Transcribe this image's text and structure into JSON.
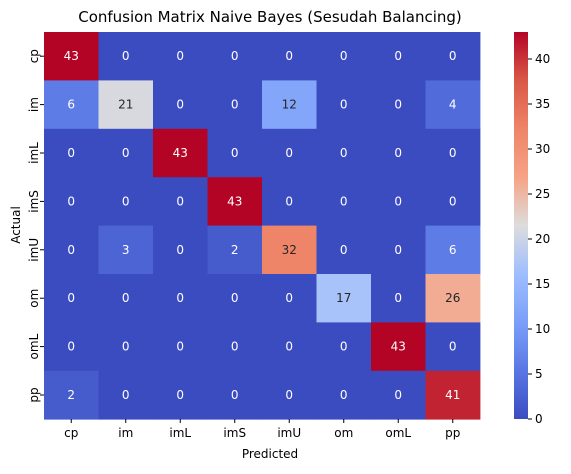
{
  "chart_data": {
    "type": "heatmap",
    "title": "Confusion Matrix Naive Bayes (Sesudah Balancing)",
    "xlabel": "Predicted",
    "ylabel": "Actual",
    "x_categories": [
      "cp",
      "im",
      "imL",
      "imS",
      "imU",
      "om",
      "omL",
      "pp"
    ],
    "y_categories": [
      "cp",
      "im",
      "imL",
      "imS",
      "imU",
      "om",
      "omL",
      "pp"
    ],
    "values": [
      [
        43,
        0,
        0,
        0,
        0,
        0,
        0,
        0
      ],
      [
        6,
        21,
        0,
        0,
        12,
        0,
        0,
        4
      ],
      [
        0,
        0,
        43,
        0,
        0,
        0,
        0,
        0
      ],
      [
        0,
        0,
        0,
        43,
        0,
        0,
        0,
        0
      ],
      [
        0,
        3,
        0,
        2,
        32,
        0,
        0,
        6
      ],
      [
        0,
        0,
        0,
        0,
        0,
        17,
        0,
        26
      ],
      [
        0,
        0,
        0,
        0,
        0,
        0,
        43,
        0
      ],
      [
        2,
        0,
        0,
        0,
        0,
        0,
        0,
        41
      ]
    ],
    "colormap": "coolwarm",
    "vmin": 0,
    "vmax": 43,
    "colorbar_ticks": [
      "0",
      "5",
      "10",
      "15",
      "20",
      "25",
      "30",
      "35",
      "40"
    ],
    "colorbar_tick_values": [
      0,
      5,
      10,
      15,
      20,
      25,
      30,
      35,
      40
    ],
    "annotations": true
  }
}
